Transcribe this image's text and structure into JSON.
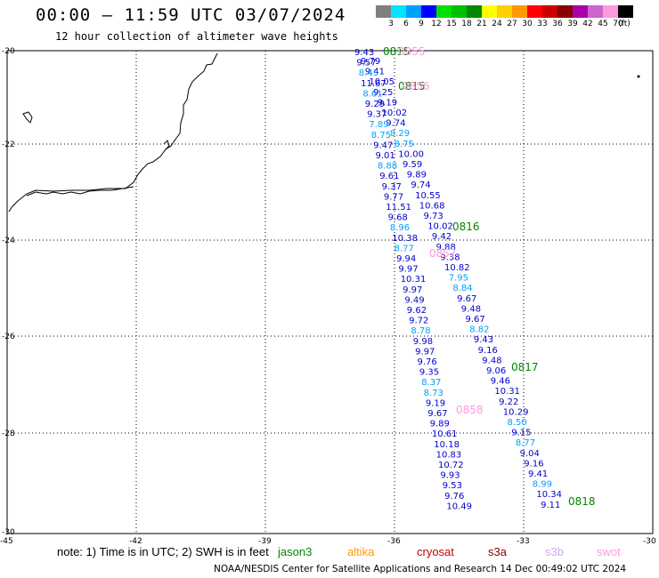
{
  "title": "00:00 – 11:59 UTC 03/07/2024",
  "subtitle": "12 hour collection of altimeter wave heights",
  "legend": {
    "unit": "(ft)",
    "bins": [
      {
        "label": "3",
        "color": "#7f7f7f"
      },
      {
        "label": "6",
        "color": "#00e5ff"
      },
      {
        "label": "9",
        "color": "#00a0ff"
      },
      {
        "label": "12",
        "color": "#0000ff"
      },
      {
        "label": "15",
        "color": "#00e000"
      },
      {
        "label": "18",
        "color": "#00c000"
      },
      {
        "label": "21",
        "color": "#008800"
      },
      {
        "label": "24",
        "color": "#ffff00"
      },
      {
        "label": "27",
        "color": "#ffd000"
      },
      {
        "label": "30",
        "color": "#ff9900"
      },
      {
        "label": "33",
        "color": "#ff0000"
      },
      {
        "label": "36",
        "color": "#cc0000"
      },
      {
        "label": "39",
        "color": "#880000"
      },
      {
        "label": "42",
        "color": "#aa00aa"
      },
      {
        "label": "45",
        "color": "#cc66cc"
      },
      {
        "label": "70",
        "color": "#ff99dd"
      },
      {
        "label": "",
        "color": "#000000"
      }
    ]
  },
  "axes": {
    "lat_labels": [
      "-20",
      "-22",
      "-24",
      "-26",
      "-28",
      "-30"
    ],
    "lon_labels": [
      "-45",
      "-42",
      "-39",
      "-36",
      "-33",
      "-30"
    ]
  },
  "note": "note:  1) Time is in UTC;  2) SWH is in feet",
  "satellites": [
    {
      "name": "jason3",
      "color": "#008800"
    },
    {
      "name": "altika",
      "color": "#ff9900"
    },
    {
      "name": "cryosat",
      "color": "#cc0000"
    },
    {
      "name": "s3a",
      "color": "#880000"
    },
    {
      "name": "s3b",
      "color": "#ccaaee"
    },
    {
      "name": "swot",
      "color": "#ff99dd"
    }
  ],
  "footer": "NOAA/NESDIS Center for Satellite Applications and Research    14 Dec 00:49:02 UTC 2024",
  "time_labels": [
    {
      "text": "0815",
      "color": "#008800"
    },
    {
      "text": "0855",
      "color": "#ff99dd"
    },
    {
      "text": "0815",
      "color": "#008800"
    },
    {
      "text": "0856",
      "color": "#ff99dd"
    },
    {
      "text": "0816",
      "color": "#008800"
    },
    {
      "text": "0857",
      "color": "#ff99dd"
    },
    {
      "text": "0817",
      "color": "#008800"
    },
    {
      "text": "0858",
      "color": "#ff99dd"
    },
    {
      "text": "0818",
      "color": "#008800"
    }
  ],
  "track_a": [
    {
      "v": "9.43",
      "c": "#0000cc"
    },
    {
      "v": "9.79",
      "c": "#0000cc"
    },
    {
      "v": "9.57",
      "c": "#0000cc"
    },
    {
      "v": "9.41",
      "c": "#0000cc"
    },
    {
      "v": "8.43",
      "c": "#00a0ff"
    },
    {
      "v": "10.05",
      "c": "#0000cc"
    },
    {
      "v": "11.67",
      "c": "#0000cc"
    },
    {
      "v": "9.25",
      "c": "#0000cc"
    },
    {
      "v": "8.61",
      "c": "#00a0ff"
    },
    {
      "v": "9.19",
      "c": "#0000cc"
    },
    {
      "v": "9.29",
      "c": "#0000cc"
    },
    {
      "v": "10.02",
      "c": "#0000cc"
    },
    {
      "v": "9.37",
      "c": "#0000cc"
    },
    {
      "v": "9.74",
      "c": "#0000cc"
    },
    {
      "v": "7.89",
      "c": "#00a0ff"
    },
    {
      "v": "8.29",
      "c": "#00a0ff"
    },
    {
      "v": "8.75",
      "c": "#00a0ff"
    },
    {
      "v": "8.75",
      "c": "#00a0ff"
    },
    {
      "v": "9.47",
      "c": "#0000cc"
    },
    {
      "v": "10.00",
      "c": "#0000cc"
    },
    {
      "v": "9.01",
      "c": "#0000cc"
    },
    {
      "v": "9.59",
      "c": "#0000cc"
    },
    {
      "v": "8.88",
      "c": "#00a0ff"
    },
    {
      "v": "9.89",
      "c": "#0000cc"
    },
    {
      "v": "9.61",
      "c": "#0000cc"
    },
    {
      "v": "9.74",
      "c": "#0000cc"
    },
    {
      "v": "9.37",
      "c": "#0000cc"
    },
    {
      "v": "10.55",
      "c": "#0000cc"
    },
    {
      "v": "9.77",
      "c": "#0000cc"
    },
    {
      "v": "10.68",
      "c": "#0000cc"
    },
    {
      "v": "11.51",
      "c": "#0000cc"
    },
    {
      "v": "9.73",
      "c": "#0000cc"
    },
    {
      "v": "9.68",
      "c": "#0000cc"
    },
    {
      "v": "10.02",
      "c": "#0000cc"
    },
    {
      "v": "8.96",
      "c": "#00a0ff"
    },
    {
      "v": "9.42",
      "c": "#0000cc"
    },
    {
      "v": "10.38",
      "c": "#0000cc"
    },
    {
      "v": "9.88",
      "c": "#0000cc"
    },
    {
      "v": "8.77",
      "c": "#00a0ff"
    },
    {
      "v": "9.38",
      "c": "#0000cc"
    },
    {
      "v": "9.94",
      "c": "#0000cc"
    },
    {
      "v": "10.82",
      "c": "#0000cc"
    },
    {
      "v": "9.97",
      "c": "#0000cc"
    },
    {
      "v": "7.95",
      "c": "#00a0ff"
    },
    {
      "v": "10.31",
      "c": "#0000cc"
    },
    {
      "v": "8.84",
      "c": "#00a0ff"
    },
    {
      "v": "9.97",
      "c": "#0000cc"
    },
    {
      "v": "9.67",
      "c": "#0000cc"
    },
    {
      "v": "9.49",
      "c": "#0000cc"
    },
    {
      "v": "9.48",
      "c": "#0000cc"
    },
    {
      "v": "9.62",
      "c": "#0000cc"
    },
    {
      "v": "9.67",
      "c": "#0000cc"
    },
    {
      "v": "9.72",
      "c": "#0000cc"
    },
    {
      "v": "8.82",
      "c": "#00a0ff"
    },
    {
      "v": "8.78",
      "c": "#00a0ff"
    },
    {
      "v": "9.43",
      "c": "#0000cc"
    },
    {
      "v": "9.98",
      "c": "#0000cc"
    },
    {
      "v": "9.16",
      "c": "#0000cc"
    },
    {
      "v": "9.97",
      "c": "#0000cc"
    },
    {
      "v": "9.48",
      "c": "#0000cc"
    },
    {
      "v": "9.76",
      "c": "#0000cc"
    },
    {
      "v": "9.06",
      "c": "#0000cc"
    },
    {
      "v": "9.35",
      "c": "#0000cc"
    },
    {
      "v": "9.46",
      "c": "#0000cc"
    },
    {
      "v": "8.37",
      "c": "#00a0ff"
    },
    {
      "v": "10.31",
      "c": "#0000cc"
    },
    {
      "v": "8.73",
      "c": "#00a0ff"
    },
    {
      "v": "9.22",
      "c": "#0000cc"
    },
    {
      "v": "9.19",
      "c": "#0000cc"
    },
    {
      "v": "10.29",
      "c": "#0000cc"
    },
    {
      "v": "9.67",
      "c": "#0000cc"
    },
    {
      "v": "8.50",
      "c": "#00a0ff"
    },
    {
      "v": "9.89",
      "c": "#0000cc"
    },
    {
      "v": "9.15",
      "c": "#0000cc"
    },
    {
      "v": "10.61",
      "c": "#0000cc"
    },
    {
      "v": "8.77",
      "c": "#00a0ff"
    },
    {
      "v": "10.18",
      "c": "#0000cc"
    },
    {
      "v": "9.04",
      "c": "#0000cc"
    },
    {
      "v": "10.83",
      "c": "#0000cc"
    },
    {
      "v": "9.16",
      "c": "#0000cc"
    },
    {
      "v": "10.72",
      "c": "#0000cc"
    },
    {
      "v": "9.41",
      "c": "#0000cc"
    },
    {
      "v": "9.93",
      "c": "#0000cc"
    },
    {
      "v": "8.99",
      "c": "#00a0ff"
    },
    {
      "v": "9.53",
      "c": "#0000cc"
    },
    {
      "v": "10.34",
      "c": "#0000cc"
    },
    {
      "v": "9.76",
      "c": "#0000cc"
    },
    {
      "v": "9.11",
      "c": "#0000cc"
    },
    {
      "v": "10.49",
      "c": "#0000cc"
    }
  ]
}
